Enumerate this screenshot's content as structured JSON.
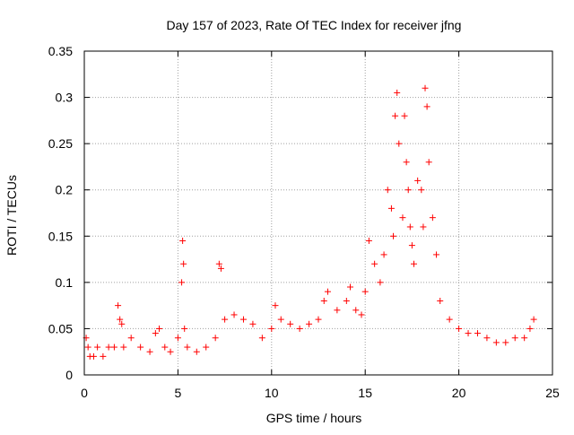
{
  "chart_data": {
    "type": "scatter",
    "title": "Day 157 of 2023, Rate Of TEC Index for receiver jfng",
    "xlabel": "GPS time / hours",
    "ylabel": "ROTI / TECUs",
    "xlim": [
      0,
      25
    ],
    "ylim": [
      0,
      0.35
    ],
    "x_ticks": [
      0,
      5,
      10,
      15,
      20,
      25
    ],
    "x_tick_labels": [
      "0",
      "5",
      "10",
      "15",
      "20",
      "25"
    ],
    "y_ticks": [
      0,
      0.05,
      0.1,
      0.15,
      0.2,
      0.25,
      0.3,
      0.35
    ],
    "y_tick_labels": [
      "0",
      "0.05",
      "0.1",
      "0.15",
      "0.2",
      "0.25",
      "0.3",
      "0.35"
    ],
    "grid": true,
    "marker": "+",
    "marker_color": "#ff0000",
    "series": [
      {
        "name": "ROTI",
        "color": "#ff0000",
        "x": [
          0.1,
          0.2,
          0.3,
          0.5,
          0.7,
          1.0,
          1.3,
          1.6,
          1.8,
          1.9,
          2.0,
          2.1,
          2.5,
          3.0,
          3.5,
          3.8,
          4.0,
          4.3,
          4.6,
          5.0,
          5.2,
          5.25,
          5.3,
          5.35,
          5.5,
          6.0,
          6.5,
          7.0,
          7.2,
          7.3,
          7.5,
          8.0,
          8.5,
          9.0,
          9.5,
          10.0,
          10.2,
          10.5,
          11.0,
          11.5,
          12.0,
          12.5,
          12.8,
          13.0,
          13.5,
          14.0,
          14.2,
          14.5,
          14.8,
          15.0,
          15.2,
          15.5,
          15.8,
          16.0,
          16.2,
          16.4,
          16.5,
          16.6,
          16.7,
          16.8,
          17.0,
          17.1,
          17.2,
          17.3,
          17.4,
          17.5,
          17.6,
          17.8,
          18.0,
          18.1,
          18.2,
          18.3,
          18.4,
          18.6,
          18.8,
          19.0,
          19.5,
          20.0,
          20.5,
          21.0,
          21.5,
          22.0,
          22.5,
          23.0,
          23.5,
          23.8,
          24.0
        ],
        "y": [
          0.04,
          0.03,
          0.02,
          0.02,
          0.03,
          0.02,
          0.03,
          0.03,
          0.075,
          0.06,
          0.055,
          0.03,
          0.04,
          0.03,
          0.025,
          0.045,
          0.05,
          0.03,
          0.025,
          0.04,
          0.1,
          0.145,
          0.12,
          0.05,
          0.03,
          0.025,
          0.03,
          0.04,
          0.12,
          0.115,
          0.06,
          0.065,
          0.06,
          0.055,
          0.04,
          0.05,
          0.075,
          0.06,
          0.055,
          0.05,
          0.055,
          0.06,
          0.08,
          0.09,
          0.07,
          0.08,
          0.095,
          0.07,
          0.065,
          0.09,
          0.145,
          0.12,
          0.1,
          0.13,
          0.2,
          0.18,
          0.15,
          0.28,
          0.305,
          0.25,
          0.17,
          0.28,
          0.23,
          0.2,
          0.16,
          0.14,
          0.12,
          0.21,
          0.2,
          0.16,
          0.31,
          0.29,
          0.23,
          0.17,
          0.13,
          0.08,
          0.06,
          0.05,
          0.045,
          0.045,
          0.04,
          0.035,
          0.035,
          0.04,
          0.04,
          0.05,
          0.06
        ]
      }
    ]
  }
}
